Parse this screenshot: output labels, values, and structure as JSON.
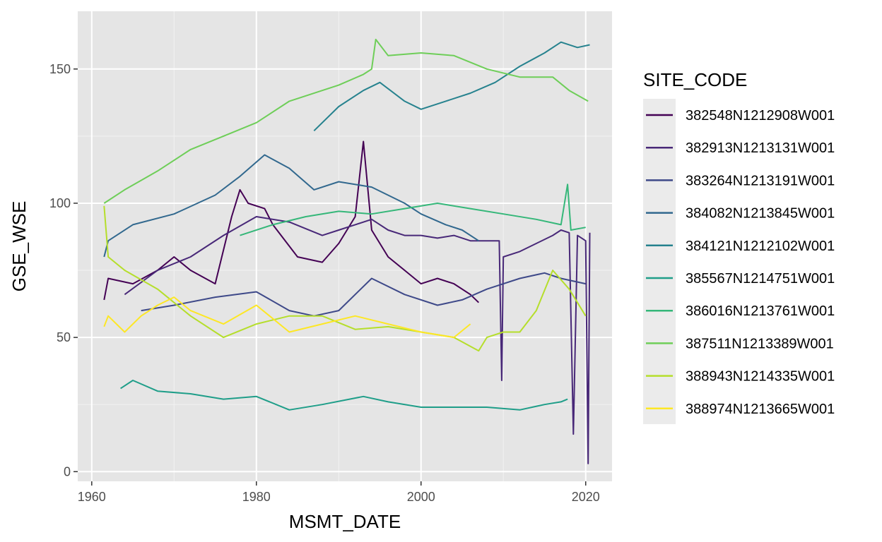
{
  "chart_data": {
    "type": "line",
    "xlabel": "MSMT_DATE",
    "ylabel": "GSE_WSE",
    "xlim": [
      1958.3,
      2023.2
    ],
    "ylim": [
      -3.6,
      171.5
    ],
    "x_ticks": [
      1960,
      1980,
      2000,
      2020
    ],
    "x_tick_labels": [
      "1960",
      "1980",
      "2000",
      "2020"
    ],
    "y_ticks": [
      0,
      50,
      100,
      150
    ],
    "y_tick_labels": [
      "0",
      "50",
      "100",
      "150"
    ],
    "grid": true,
    "panel_background": "#e5e5e5",
    "legend": {
      "title": "SITE_CODE",
      "placement": "right"
    },
    "series": [
      {
        "name": "382548N1212908W001",
        "color": "#440154",
        "x": [
          1961.5,
          1962,
          1965,
          1968,
          1970,
          1972,
          1975,
          1977,
          1978,
          1979,
          1981,
          1982,
          1985,
          1988,
          1990,
          1992,
          1993,
          1994,
          1996,
          1998,
          2000,
          2002,
          2004,
          2006,
          2007
        ],
        "y": [
          64,
          72,
          70,
          75,
          80,
          75,
          70,
          95,
          105,
          100,
          98,
          92,
          80,
          78,
          85,
          95,
          123,
          90,
          80,
          75,
          70,
          72,
          70,
          66,
          63
        ]
      },
      {
        "name": "382913N1213131W001",
        "color": "#482878",
        "x": [
          1964,
          1968,
          1972,
          1976,
          1980,
          1984,
          1988,
          1990,
          1992,
          1994,
          1996,
          1998,
          2000,
          2002,
          2004,
          2006,
          2008,
          2009.5,
          2009.8,
          2010,
          2012,
          2014,
          2016,
          2017,
          2018,
          2018.5,
          2019,
          2020,
          2020.3,
          2020.5
        ],
        "y": [
          66,
          75,
          80,
          88,
          95,
          93,
          88,
          90,
          92,
          94,
          90,
          88,
          88,
          87,
          88,
          86,
          86,
          86,
          34,
          80,
          82,
          85,
          88,
          90,
          89,
          14,
          88,
          86,
          3,
          89
        ]
      },
      {
        "name": "383264N1213191W001",
        "color": "#3e4989",
        "x": [
          1966,
          1970,
          1975,
          1980,
          1984,
          1987,
          1990,
          1994,
          1998,
          2002,
          2005,
          2008,
          2012,
          2015,
          2017,
          2020
        ],
        "y": [
          60,
          62,
          65,
          67,
          60,
          58,
          60,
          72,
          66,
          62,
          64,
          68,
          72,
          74,
          72,
          70
        ]
      },
      {
        "name": "384082N1213845W001",
        "color": "#31688e",
        "x": [
          1961.5,
          1962,
          1965,
          1970,
          1975,
          1978,
          1981,
          1984,
          1987,
          1990,
          1994,
          1998,
          2000,
          2003,
          2005,
          2007
        ],
        "y": [
          80,
          86,
          92,
          96,
          103,
          110,
          118,
          113,
          105,
          108,
          106,
          100,
          96,
          92,
          90,
          86
        ]
      },
      {
        "name": "384121N1212102W001",
        "color": "#26828e",
        "x": [
          1987,
          1990,
          1993,
          1995,
          1998,
          2000,
          2003,
          2006,
          2009,
          2012,
          2015,
          2017,
          2019,
          2020.5
        ],
        "y": [
          127,
          136,
          142,
          145,
          138,
          135,
          138,
          141,
          145,
          151,
          156,
          160,
          158,
          159
        ]
      },
      {
        "name": "385567N1214751W001",
        "color": "#1f9e89",
        "x": [
          1963.5,
          1965,
          1968,
          1972,
          1976,
          1980,
          1984,
          1988,
          1993,
          1996,
          2000,
          2004,
          2008,
          2012,
          2015,
          2017,
          2017.8
        ],
        "y": [
          31,
          34,
          30,
          29,
          27,
          28,
          23,
          25,
          28,
          26,
          24,
          24,
          24,
          23,
          25,
          26,
          27
        ]
      },
      {
        "name": "386016N1213761W001",
        "color": "#35b779",
        "x": [
          1978,
          1982,
          1986,
          1990,
          1994,
          1998,
          2002,
          2006,
          2010,
          2014,
          2017,
          2017.8,
          2018.2,
          2020
        ],
        "y": [
          88,
          92,
          95,
          97,
          96,
          98,
          100,
          98,
          96,
          94,
          92,
          107,
          90,
          91
        ]
      },
      {
        "name": "387511N1213389W001",
        "color": "#6ece58",
        "x": [
          1961.5,
          1964,
          1968,
          1972,
          1976,
          1980,
          1984,
          1988,
          1990,
          1993,
          1994,
          1994.5,
          1996,
          2000,
          2004,
          2008,
          2012,
          2016,
          2018,
          2020.3
        ],
        "y": [
          100,
          105,
          112,
          120,
          125,
          130,
          138,
          142,
          144,
          148,
          150,
          161,
          155,
          156,
          155,
          150,
          147,
          147,
          142,
          138
        ]
      },
      {
        "name": "388943N1214335W001",
        "color": "#b5de2b",
        "x": [
          1961.5,
          1962,
          1964,
          1968,
          1972,
          1976,
          1980,
          1984,
          1988,
          1992,
          1996,
          2000,
          2004,
          2007,
          2008,
          2010,
          2012,
          2014,
          2016,
          2018,
          2020
        ],
        "y": [
          99,
          80,
          75,
          68,
          58,
          50,
          55,
          58,
          58,
          53,
          54,
          52,
          50,
          45,
          50,
          52,
          52,
          60,
          75,
          68,
          58
        ]
      },
      {
        "name": "388974N1213665W001",
        "color": "#fde725",
        "x": [
          1961.5,
          1962,
          1964,
          1966,
          1968,
          1970,
          1972,
          1976,
          1980,
          1984,
          1988,
          1992,
          1996,
          2000,
          2004,
          2006
        ],
        "y": [
          54,
          58,
          52,
          58,
          62,
          65,
          60,
          55,
          62,
          52,
          55,
          58,
          55,
          52,
          50,
          55
        ]
      }
    ]
  }
}
